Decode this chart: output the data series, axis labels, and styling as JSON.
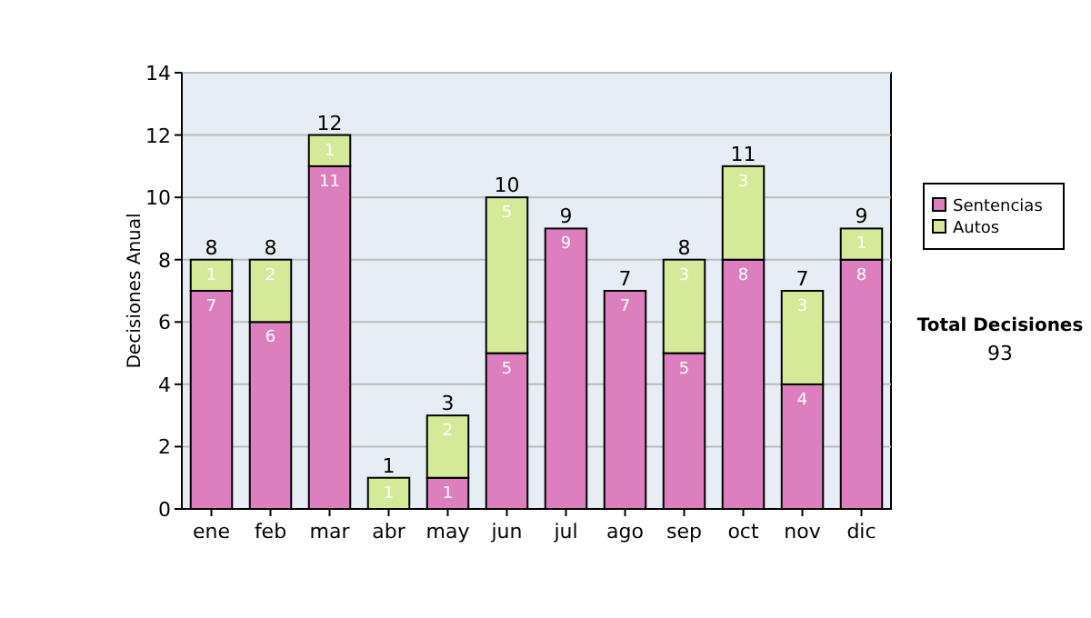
{
  "chart_data": {
    "type": "bar",
    "stacked": true,
    "ylabel": "Decisiones Anual",
    "categories": [
      "ene",
      "feb",
      "mar",
      "abr",
      "may",
      "jun",
      "jul",
      "ago",
      "sep",
      "oct",
      "nov",
      "dic"
    ],
    "series": [
      {
        "name": "Sentencias",
        "color": "#dd7fbf",
        "values": [
          7,
          6,
          11,
          0,
          1,
          5,
          9,
          7,
          5,
          8,
          4,
          8
        ],
        "value_labels": [
          "7",
          "6",
          "11",
          null,
          "1",
          "5",
          "9",
          "7",
          "5",
          "8",
          "4",
          "8"
        ]
      },
      {
        "name": "Autos",
        "color": "#d4ea98",
        "values": [
          1,
          2,
          1,
          1,
          2,
          5,
          0,
          0,
          3,
          3,
          3,
          1
        ],
        "value_labels": [
          "1",
          "2",
          "1",
          "1",
          "2",
          "5",
          null,
          null,
          "3",
          "3",
          "3",
          "1"
        ]
      }
    ],
    "totals": [
      "8",
      "8",
      "12",
      "1",
      "3",
      "10",
      "9",
      "7",
      "8",
      "11",
      "7",
      "9"
    ],
    "ylim": [
      0,
      14
    ],
    "yticks": [
      0,
      2,
      4,
      6,
      8,
      10,
      12,
      14
    ],
    "grid": "y",
    "legend": "right",
    "annotations": [
      "Total Decisiones",
      "93"
    ]
  }
}
